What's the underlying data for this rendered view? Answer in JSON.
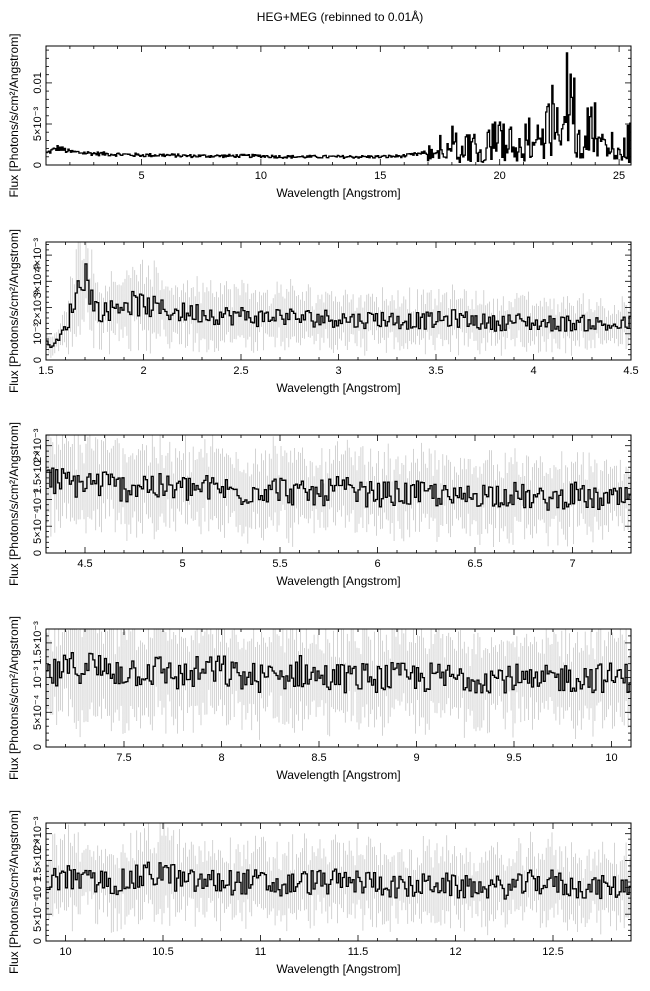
{
  "chart_data": {
    "title": "HEG+MEG (rebinned to 0.01Å)",
    "type": "line",
    "step_style": true,
    "error_bars": true,
    "colors": {
      "data": "#000000",
      "error_bars": "#c8c8c8",
      "frame": "#000000"
    },
    "panels": [
      {
        "xlabel": "Wavelength [Angstrom]",
        "ylabel": "Flux [Photons/s/cm²/Angstrom]",
        "xlim": [
          1.0,
          25.5
        ],
        "ylim": [
          0,
          0.0145
        ],
        "xticks": [
          5,
          10,
          15,
          20,
          25
        ],
        "xtick_labels": [
          "5",
          "10",
          "15",
          "20",
          "25"
        ],
        "yticks": [
          0,
          0.005,
          0.01
        ],
        "ytick_labels": [
          "0",
          "5×10⁻³",
          "0.01"
        ],
        "series": [
          {
            "x": [
              1.0,
              1.5,
              2.0,
              3.0,
              4.0,
              5.0,
              6.0,
              7.0,
              8.0,
              9.0,
              10.0,
              11.0,
              12.0,
              13.0,
              14.0,
              15.0,
              16.0,
              17.0,
              17.5,
              18.0,
              18.5,
              19.0,
              19.5,
              20.0,
              20.5,
              21.0,
              21.5,
              22.0,
              22.5,
              22.7,
              22.9,
              23.0,
              23.2,
              23.5,
              24.0,
              24.5,
              25.0,
              25.5
            ],
            "y": [
              0.0014,
              0.0021,
              0.0016,
              0.0014,
              0.0013,
              0.0012,
              0.0012,
              0.0011,
              0.0011,
              0.0011,
              0.0011,
              0.001,
              0.001,
              0.001,
              0.001,
              0.001,
              0.0011,
              0.0015,
              0.0025,
              0.0028,
              0.002,
              0.0022,
              0.003,
              0.0028,
              0.0035,
              0.004,
              0.0035,
              0.0055,
              0.007,
              0.009,
              0.0072,
              0.0144,
              0.0045,
              0.0035,
              0.0045,
              0.004,
              0.0035,
              0.003
            ]
          }
        ]
      },
      {
        "xlabel": "Wavelength [Angstrom]",
        "ylabel": "Flux [Photons/s/cm²/Angstrom]",
        "xlim": [
          1.5,
          4.5
        ],
        "ylim": [
          0,
          0.0045
        ],
        "xticks": [
          1.5,
          2,
          2.5,
          3,
          3.5,
          4,
          4.5
        ],
        "xtick_labels": [
          "1.5",
          "2",
          "2.5",
          "3",
          "3.5",
          "4",
          "4.5"
        ],
        "yticks": [
          0,
          0.001,
          0.002,
          0.003,
          0.004
        ],
        "ytick_labels": [
          "0",
          "10⁻³",
          "2×10⁻³",
          "3×10⁻³",
          "4×10⁻³"
        ],
        "series": [
          {
            "x": [
              1.55,
              1.6,
              1.65,
              1.7,
              1.75,
              1.8,
              1.9,
              2.0,
              2.1,
              2.2,
              2.3,
              2.4,
              2.5,
              2.6,
              2.7,
              2.8,
              2.9,
              3.0,
              3.1,
              3.2,
              3.3,
              3.4,
              3.5,
              3.6,
              3.7,
              3.8,
              3.9,
              4.0,
              4.1,
              4.2,
              4.3,
              4.4,
              4.5
            ],
            "y": [
              0.0006,
              0.0012,
              0.0024,
              0.0034,
              0.002,
              0.0018,
              0.0022,
              0.0021,
              0.0019,
              0.0018,
              0.0018,
              0.0017,
              0.0017,
              0.0016,
              0.0017,
              0.0016,
              0.0016,
              0.0016,
              0.0015,
              0.0016,
              0.0015,
              0.0015,
              0.0015,
              0.0016,
              0.0015,
              0.0014,
              0.0015,
              0.0014,
              0.0014,
              0.0014,
              0.0014,
              0.0013,
              0.0014
            ]
          }
        ]
      },
      {
        "xlabel": "Wavelength [Angstrom]",
        "ylabel": "Flux [Photons/s/cm²/Angstrom]",
        "xlim": [
          4.3,
          7.3
        ],
        "ylim": [
          0,
          0.0022
        ],
        "xticks": [
          4.5,
          5,
          5.5,
          6,
          6.5,
          7
        ],
        "xtick_labels": [
          "4.5",
          "5",
          "5.5",
          "6",
          "6.5",
          "7"
        ],
        "yticks": [
          0,
          0.0005,
          0.001,
          0.0015,
          0.002
        ],
        "ytick_labels": [
          "0",
          "5×10⁻⁴",
          "10⁻³",
          "1.5×10⁻³",
          "2×10⁻³"
        ],
        "series": [
          {
            "x": [
              4.3,
              4.4,
              4.5,
              4.6,
              4.7,
              4.8,
              4.9,
              5.0,
              5.1,
              5.2,
              5.3,
              5.4,
              5.5,
              5.6,
              5.7,
              5.8,
              5.9,
              6.0,
              6.1,
              6.2,
              6.3,
              6.4,
              6.5,
              6.6,
              6.7,
              6.8,
              6.9,
              7.0,
              7.1,
              7.2,
              7.3
            ],
            "y": [
              0.0014,
              0.0013,
              0.0013,
              0.0013,
              0.0012,
              0.0013,
              0.0012,
              0.0012,
              0.0012,
              0.0012,
              0.0011,
              0.0012,
              0.0012,
              0.0011,
              0.0011,
              0.0012,
              0.0011,
              0.0011,
              0.0011,
              0.0011,
              0.0011,
              0.001,
              0.0011,
              0.0011,
              0.0011,
              0.001,
              0.001,
              0.0011,
              0.001,
              0.001,
              0.001
            ]
          }
        ]
      },
      {
        "xlabel": "Wavelength [Angstrom]",
        "ylabel": "Flux [Photons/s/cm²/Angstrom]",
        "xlim": [
          7.1,
          10.1
        ],
        "ylim": [
          0,
          0.0017
        ],
        "xticks": [
          7.5,
          8,
          8.5,
          9,
          9.5,
          10
        ],
        "xtick_labels": [
          "7.5",
          "8",
          "8.5",
          "9",
          "9.5",
          "10"
        ],
        "yticks": [
          0,
          0.0005,
          0.001,
          0.0015
        ],
        "ytick_labels": [
          "0",
          "5×10⁻⁴",
          "10⁻³",
          "1.5×10⁻³"
        ],
        "series": [
          {
            "x": [
              7.1,
              7.2,
              7.3,
              7.4,
              7.5,
              7.6,
              7.7,
              7.8,
              7.9,
              8.0,
              8.1,
              8.2,
              8.3,
              8.4,
              8.5,
              8.6,
              8.7,
              8.8,
              8.9,
              9.0,
              9.1,
              9.2,
              9.3,
              9.4,
              9.5,
              9.6,
              9.7,
              9.8,
              9.9,
              10.0,
              10.1
            ],
            "y": [
              0.001,
              0.0011,
              0.0012,
              0.0011,
              0.0011,
              0.0011,
              0.0011,
              0.001,
              0.0011,
              0.0011,
              0.001,
              0.001,
              0.001,
              0.0011,
              0.001,
              0.001,
              0.001,
              0.001,
              0.001,
              0.001,
              0.001,
              0.001,
              0.001,
              0.001,
              0.001,
              0.0009,
              0.001,
              0.001,
              0.001,
              0.001,
              0.001
            ]
          }
        ]
      },
      {
        "xlabel": "Wavelength [Angstrom]",
        "ylabel": "Flux [Photons/s/cm²/Angstrom]",
        "xlim": [
          9.9,
          12.9
        ],
        "ylim": [
          0,
          0.0022
        ],
        "xticks": [
          10,
          10.5,
          11,
          11.5,
          12,
          12.5
        ],
        "xtick_labels": [
          "10",
          "10.5",
          "11",
          "11.5",
          "12",
          "12.5"
        ],
        "yticks": [
          0,
          0.0005,
          0.001,
          0.0015,
          0.002
        ],
        "ytick_labels": [
          "0",
          "5×10⁻⁴",
          "10⁻³",
          "1.5×10⁻³",
          "2×10⁻³"
        ],
        "series": [
          {
            "x": [
              9.9,
              10.0,
              10.1,
              10.2,
              10.3,
              10.4,
              10.5,
              10.6,
              10.7,
              10.8,
              10.9,
              11.0,
              11.1,
              11.2,
              11.3,
              11.4,
              11.5,
              11.6,
              11.7,
              11.8,
              11.9,
              12.0,
              12.1,
              12.2,
              12.3,
              12.4,
              12.5,
              12.6,
              12.7,
              12.8,
              12.9
            ],
            "y": [
              0.0011,
              0.0012,
              0.0011,
              0.0011,
              0.0011,
              0.0012,
              0.0013,
              0.0011,
              0.0011,
              0.0011,
              0.0011,
              0.0011,
              0.001,
              0.0011,
              0.0011,
              0.0011,
              0.0011,
              0.0011,
              0.001,
              0.001,
              0.0011,
              0.001,
              0.001,
              0.001,
              0.001,
              0.0011,
              0.0011,
              0.001,
              0.001,
              0.001,
              0.001
            ]
          }
        ]
      }
    ]
  }
}
